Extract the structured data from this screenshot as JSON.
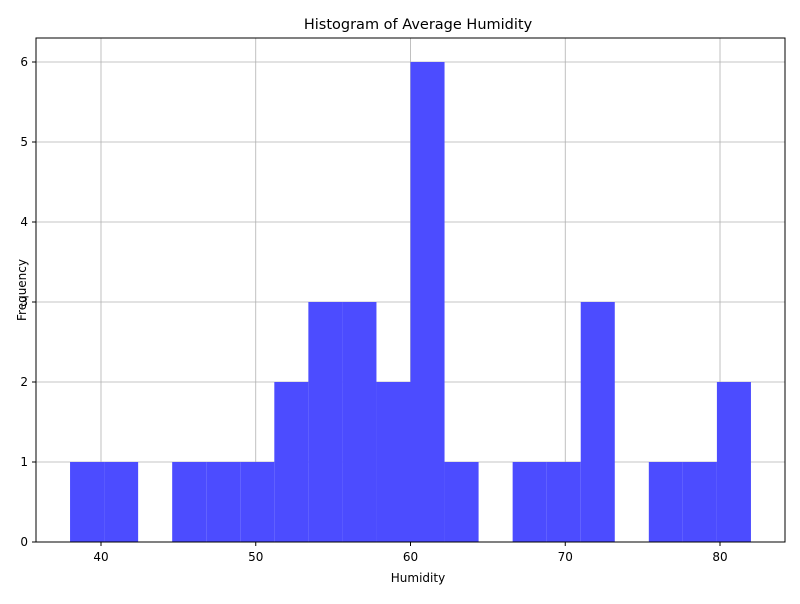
{
  "chart_data": {
    "type": "bar",
    "title": "Histogram of Average Humidity",
    "xlabel": "Humidity",
    "ylabel": "Frequency",
    "xlim": [
      35.8,
      84.2
    ],
    "ylim": [
      0,
      6.3
    ],
    "grid": true,
    "bar_color": "#4c4cff",
    "grid_color": "#b0b0b0",
    "x_ticks": [
      {
        "value": 40,
        "label": "40"
      },
      {
        "value": 50,
        "label": "50"
      },
      {
        "value": 60,
        "label": "60"
      },
      {
        "value": 70,
        "label": "70"
      },
      {
        "value": 80,
        "label": "80"
      }
    ],
    "y_ticks": [
      {
        "value": 0,
        "label": "0"
      },
      {
        "value": 1,
        "label": "1"
      },
      {
        "value": 2,
        "label": "2"
      },
      {
        "value": 3,
        "label": "3"
      },
      {
        "value": 4,
        "label": "4"
      },
      {
        "value": 5,
        "label": "5"
      },
      {
        "value": 6,
        "label": "6"
      }
    ],
    "bins": [
      {
        "x0": 38.0,
        "x1": 40.2,
        "count": 1
      },
      {
        "x0": 40.2,
        "x1": 42.4,
        "count": 1
      },
      {
        "x0": 42.4,
        "x1": 44.6,
        "count": 0
      },
      {
        "x0": 44.6,
        "x1": 46.8,
        "count": 1
      },
      {
        "x0": 46.8,
        "x1": 49.0,
        "count": 1
      },
      {
        "x0": 49.0,
        "x1": 51.2,
        "count": 1
      },
      {
        "x0": 51.2,
        "x1": 53.4,
        "count": 2
      },
      {
        "x0": 53.4,
        "x1": 55.6,
        "count": 3
      },
      {
        "x0": 55.6,
        "x1": 57.8,
        "count": 3
      },
      {
        "x0": 57.8,
        "x1": 60.0,
        "count": 2
      },
      {
        "x0": 60.0,
        "x1": 62.2,
        "count": 6
      },
      {
        "x0": 62.2,
        "x1": 64.4,
        "count": 1
      },
      {
        "x0": 64.4,
        "x1": 66.6,
        "count": 0
      },
      {
        "x0": 66.6,
        "x1": 68.8,
        "count": 1
      },
      {
        "x0": 68.8,
        "x1": 71.0,
        "count": 1
      },
      {
        "x0": 71.0,
        "x1": 73.2,
        "count": 3
      },
      {
        "x0": 73.2,
        "x1": 75.4,
        "count": 0
      },
      {
        "x0": 75.4,
        "x1": 77.6,
        "count": 1
      },
      {
        "x0": 77.6,
        "x1": 79.8,
        "count": 1
      },
      {
        "x0": 79.8,
        "x1": 82.0,
        "count": 2
      }
    ]
  }
}
